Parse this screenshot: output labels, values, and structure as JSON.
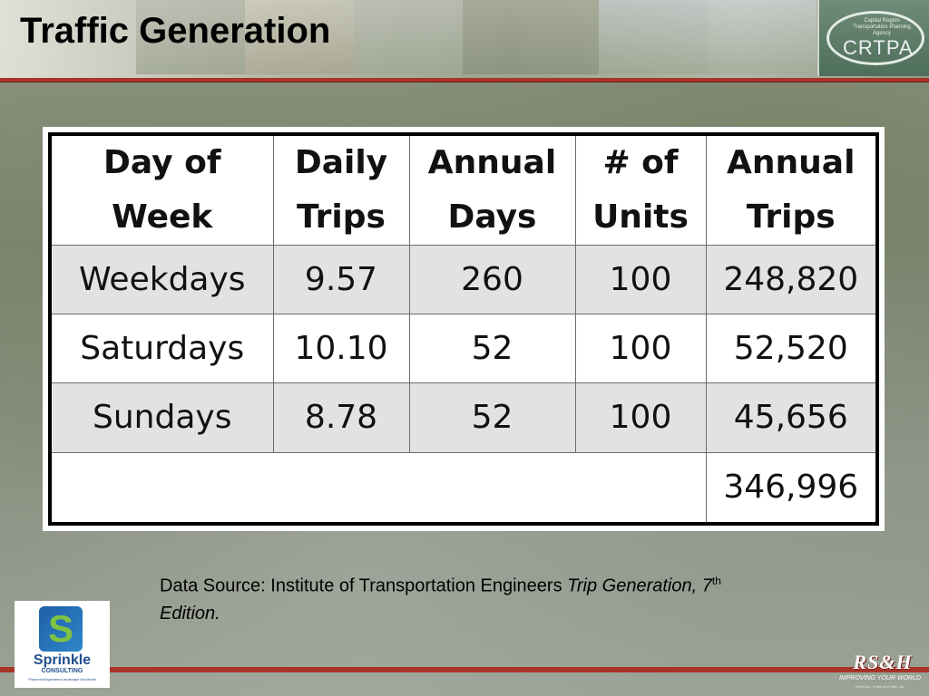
{
  "header": {
    "title": "Traffic Generation",
    "logo": {
      "text": "CRTPA",
      "small_text": "Capital Region Transportation Planning Agency",
      "icon": "crtpa-logo-icon"
    }
  },
  "table": {
    "columns": [
      {
        "line1": "Day of",
        "line2": "Week"
      },
      {
        "line1": "Daily",
        "line2": "Trips"
      },
      {
        "line1": "Annual",
        "line2": "Days"
      },
      {
        "line1": "# of",
        "line2": "Units"
      },
      {
        "line1": "Annual",
        "line2": "Trips"
      }
    ],
    "rows": [
      {
        "day": "Weekdays",
        "daily_trips": "9.57",
        "annual_days": "260",
        "units": "100",
        "annual_trips": "248,820"
      },
      {
        "day": "Saturdays",
        "daily_trips": "10.10",
        "annual_days": "52",
        "units": "100",
        "annual_trips": "52,520"
      },
      {
        "day": "Sundays",
        "daily_trips": "8.78",
        "annual_days": "52",
        "units": "100",
        "annual_trips": "45,656"
      }
    ],
    "total": "346,996"
  },
  "source": {
    "prefix": "Data Source: Institute of Transportation Engineers ",
    "italic_1": "Trip Generation, 7",
    "sup": "th",
    "italic_2": " Edition."
  },
  "footer": {
    "sprinkle_logo": {
      "mark": "S",
      "name": "Sprinkle",
      "sub": "CONSULTING",
      "tag": "Planners•Engineers•Landscape Architects",
      "icon": "sprinkle-logo-icon"
    },
    "rsh_logo": {
      "name": "RS&H",
      "tag": "IMPROVING YOUR WORLD",
      "sub": "Reynolds, Smith and Hills, Inc.",
      "icon": "rsh-logo-icon"
    }
  },
  "colors": {
    "accent_rule": "#a8342a",
    "shaded_row": "#e2e2e2",
    "table_border": "#000000"
  }
}
